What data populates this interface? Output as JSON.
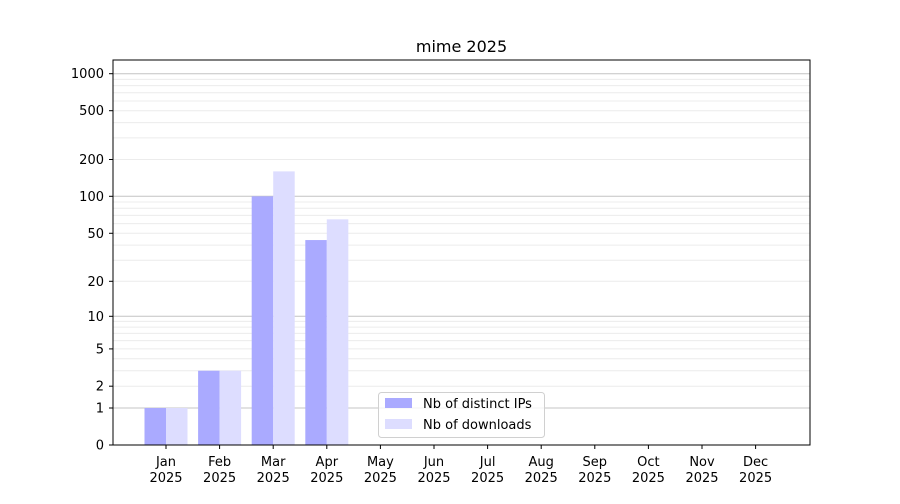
{
  "chart_data": {
    "type": "bar",
    "title": "mime 2025",
    "xlabel": "",
    "ylabel": "",
    "yscale": "symlog (log of 1+x)",
    "ylim": [
      0,
      1300
    ],
    "yticks": [
      0,
      1,
      2,
      5,
      10,
      20,
      50,
      100,
      200,
      500,
      1000
    ],
    "grid": true,
    "legend_position": "lower center",
    "categories": [
      "Jan\n2025",
      "Feb\n2025",
      "Mar\n2025",
      "Apr\n2025",
      "May\n2025",
      "Jun\n2025",
      "Jul\n2025",
      "Aug\n2025",
      "Sep\n2025",
      "Oct\n2025",
      "Nov\n2025",
      "Dec\n2025"
    ],
    "series": [
      {
        "name": "Nb of distinct IPs",
        "color": "#aaaaff",
        "values": [
          1,
          3,
          100,
          44,
          0,
          0,
          0,
          0,
          0,
          0,
          0,
          0
        ]
      },
      {
        "name": "Nb of downloads",
        "color": "#ddddff",
        "values": [
          1,
          3,
          160,
          65,
          0,
          0,
          0,
          0,
          0,
          0,
          0,
          0
        ]
      }
    ]
  }
}
